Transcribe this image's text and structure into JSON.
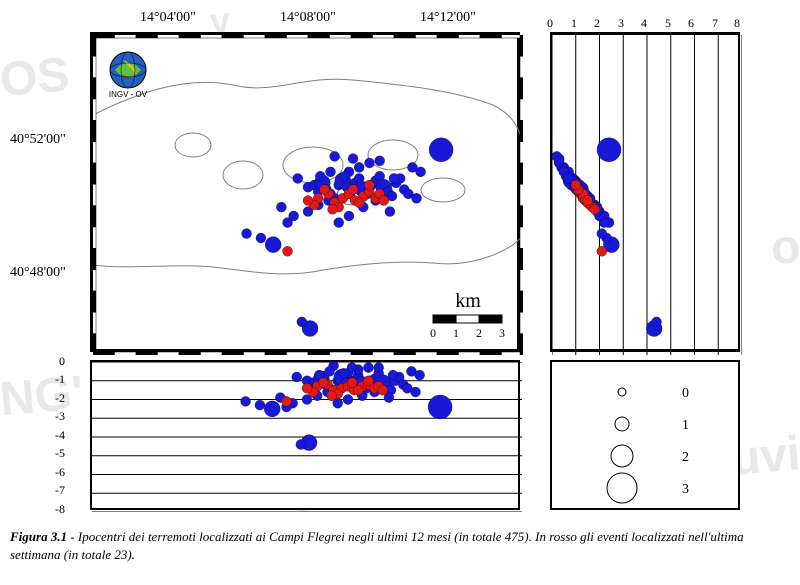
{
  "caption": {
    "label": "Figura 3.1",
    "text": " - Ipocentri dei terremoti localizzati ai Campi Flegrei negli ultimi 12 mesi (in totale 475). In rosso gli eventi localizzati nell'ultima settimana (in totale 23)."
  },
  "map": {
    "lon_ticks": [
      "14°04'00\"",
      "14°08'00\"",
      "14°12'00\""
    ],
    "lat_ticks": [
      "40°52'00\"",
      "40°48'00\""
    ],
    "xlim": [
      14.02,
      14.23
    ],
    "ylim": [
      40.755,
      40.9
    ],
    "scale_label": "km",
    "scale_values": [
      "0",
      "1",
      "2",
      "3"
    ],
    "logo_label": "INGV - OV"
  },
  "depth_axis": {
    "x_ticks": [
      0,
      1,
      2,
      3,
      4,
      5,
      6,
      7,
      8
    ],
    "y_ticks": [
      0,
      -1,
      -2,
      -3,
      -4,
      -5,
      -6,
      -7,
      -8
    ]
  },
  "legend": {
    "items": [
      {
        "size": 4,
        "label": "0"
      },
      {
        "size": 7,
        "label": "1"
      },
      {
        "size": 11,
        "label": "2"
      },
      {
        "size": 15,
        "label": "3"
      }
    ]
  },
  "colors": {
    "blue": "#1818d8",
    "red": "#e01818",
    "surface_outline": "#808080",
    "grid": "#000000",
    "bg": "#ffffff"
  },
  "events": {
    "blue_points": [
      {
        "lon": 14.125,
        "lat": 40.831,
        "d": 1.0,
        "m": 1
      },
      {
        "lon": 14.128,
        "lat": 40.832,
        "d": 1.1,
        "m": 1
      },
      {
        "lon": 14.13,
        "lat": 40.829,
        "d": 1.3,
        "m": 1
      },
      {
        "lon": 14.132,
        "lat": 40.833,
        "d": 0.9,
        "m": 2
      },
      {
        "lon": 14.134,
        "lat": 40.83,
        "d": 1.2,
        "m": 1
      },
      {
        "lon": 14.136,
        "lat": 40.828,
        "d": 1.4,
        "m": 1
      },
      {
        "lon": 14.138,
        "lat": 40.826,
        "d": 1.5,
        "m": 1
      },
      {
        "lon": 14.14,
        "lat": 40.832,
        "d": 1.0,
        "m": 1
      },
      {
        "lon": 14.142,
        "lat": 40.834,
        "d": 0.8,
        "m": 2
      },
      {
        "lon": 14.144,
        "lat": 40.831,
        "d": 1.1,
        "m": 1
      },
      {
        "lon": 14.146,
        "lat": 40.829,
        "d": 1.3,
        "m": 1
      },
      {
        "lon": 14.148,
        "lat": 40.833,
        "d": 1.0,
        "m": 1
      },
      {
        "lon": 14.15,
        "lat": 40.835,
        "d": 0.7,
        "m": 1
      },
      {
        "lon": 14.152,
        "lat": 40.83,
        "d": 1.2,
        "m": 2
      },
      {
        "lon": 14.154,
        "lat": 40.828,
        "d": 1.4,
        "m": 1
      },
      {
        "lon": 14.156,
        "lat": 40.832,
        "d": 1.0,
        "m": 1
      },
      {
        "lon": 14.158,
        "lat": 40.834,
        "d": 0.9,
        "m": 1
      },
      {
        "lon": 14.16,
        "lat": 40.836,
        "d": 0.6,
        "m": 1
      },
      {
        "lon": 14.162,
        "lat": 40.831,
        "d": 1.1,
        "m": 2
      },
      {
        "lon": 14.164,
        "lat": 40.829,
        "d": 1.3,
        "m": 1
      },
      {
        "lon": 14.166,
        "lat": 40.827,
        "d": 1.5,
        "m": 1
      },
      {
        "lon": 14.168,
        "lat": 40.833,
        "d": 1.0,
        "m": 1
      },
      {
        "lon": 14.17,
        "lat": 40.835,
        "d": 0.8,
        "m": 1
      },
      {
        "lon": 14.172,
        "lat": 40.83,
        "d": 1.2,
        "m": 1
      },
      {
        "lon": 14.174,
        "lat": 40.828,
        "d": 1.4,
        "m": 1
      },
      {
        "lon": 14.176,
        "lat": 40.84,
        "d": 0.5,
        "m": 1
      },
      {
        "lon": 14.145,
        "lat": 40.838,
        "d": 0.6,
        "m": 1
      },
      {
        "lon": 14.15,
        "lat": 40.84,
        "d": 0.4,
        "m": 1
      },
      {
        "lon": 14.155,
        "lat": 40.842,
        "d": 0.3,
        "m": 1
      },
      {
        "lon": 14.135,
        "lat": 40.825,
        "d": 1.6,
        "m": 1
      },
      {
        "lon": 14.13,
        "lat": 40.823,
        "d": 1.8,
        "m": 1
      },
      {
        "lon": 14.125,
        "lat": 40.82,
        "d": 2.0,
        "m": 1
      },
      {
        "lon": 14.118,
        "lat": 40.818,
        "d": 2.2,
        "m": 1
      },
      {
        "lon": 14.115,
        "lat": 40.815,
        "d": 2.4,
        "m": 1
      },
      {
        "lon": 14.112,
        "lat": 40.822,
        "d": 1.9,
        "m": 1
      },
      {
        "lon": 14.108,
        "lat": 40.805,
        "d": 2.5,
        "m": 2
      },
      {
        "lon": 14.102,
        "lat": 40.808,
        "d": 2.3,
        "m": 1
      },
      {
        "lon": 14.095,
        "lat": 40.81,
        "d": 2.1,
        "m": 1
      },
      {
        "lon": 14.19,
        "lat": 40.848,
        "d": 2.4,
        "m": 3
      },
      {
        "lon": 14.178,
        "lat": 40.826,
        "d": 1.6,
        "m": 1
      },
      {
        "lon": 14.18,
        "lat": 40.838,
        "d": 0.7,
        "m": 1
      },
      {
        "lon": 14.14,
        "lat": 40.815,
        "d": 2.2,
        "m": 1
      },
      {
        "lon": 14.145,
        "lat": 40.818,
        "d": 2.0,
        "m": 1
      },
      {
        "lon": 14.12,
        "lat": 40.835,
        "d": 0.8,
        "m": 1
      },
      {
        "lon": 14.165,
        "lat": 40.82,
        "d": 1.9,
        "m": 1
      },
      {
        "lon": 14.126,
        "lat": 40.767,
        "d": 4.3,
        "m": 2
      },
      {
        "lon": 14.122,
        "lat": 40.77,
        "d": 4.4,
        "m": 1
      },
      {
        "lon": 14.158,
        "lat": 40.825,
        "d": 1.6,
        "m": 1
      },
      {
        "lon": 14.152,
        "lat": 40.822,
        "d": 1.8,
        "m": 1
      },
      {
        "lon": 14.147,
        "lat": 40.844,
        "d": 0.3,
        "m": 1
      },
      {
        "lon": 14.138,
        "lat": 40.845,
        "d": 0.2,
        "m": 1
      },
      {
        "lon": 14.16,
        "lat": 40.843,
        "d": 0.3,
        "m": 1
      },
      {
        "lon": 14.143,
        "lat": 40.836,
        "d": 0.6,
        "m": 1
      },
      {
        "lon": 14.136,
        "lat": 40.838,
        "d": 0.5,
        "m": 1
      },
      {
        "lon": 14.131,
        "lat": 40.836,
        "d": 0.7,
        "m": 1
      },
      {
        "lon": 14.167,
        "lat": 40.835,
        "d": 0.7,
        "m": 1
      }
    ],
    "red_points": [
      {
        "lon": 14.13,
        "lat": 40.826,
        "d": 1.3,
        "m": 1
      },
      {
        "lon": 14.135,
        "lat": 40.828,
        "d": 1.2,
        "m": 1
      },
      {
        "lon": 14.138,
        "lat": 40.824,
        "d": 1.5,
        "m": 1
      },
      {
        "lon": 14.142,
        "lat": 40.826,
        "d": 1.4,
        "m": 1
      },
      {
        "lon": 14.145,
        "lat": 40.828,
        "d": 1.3,
        "m": 1
      },
      {
        "lon": 14.148,
        "lat": 40.825,
        "d": 1.5,
        "m": 1
      },
      {
        "lon": 14.152,
        "lat": 40.827,
        "d": 1.3,
        "m": 1
      },
      {
        "lon": 14.155,
        "lat": 40.829,
        "d": 1.2,
        "m": 1
      },
      {
        "lon": 14.158,
        "lat": 40.826,
        "d": 1.4,
        "m": 1
      },
      {
        "lon": 14.16,
        "lat": 40.828,
        "d": 1.3,
        "m": 1
      },
      {
        "lon": 14.128,
        "lat": 40.823,
        "d": 1.6,
        "m": 1
      },
      {
        "lon": 14.125,
        "lat": 40.825,
        "d": 1.4,
        "m": 1
      },
      {
        "lon": 14.14,
        "lat": 40.822,
        "d": 1.7,
        "m": 1
      },
      {
        "lon": 14.15,
        "lat": 40.824,
        "d": 1.5,
        "m": 1
      },
      {
        "lon": 14.162,
        "lat": 40.825,
        "d": 1.5,
        "m": 1
      },
      {
        "lon": 14.133,
        "lat": 40.83,
        "d": 1.1,
        "m": 1
      },
      {
        "lon": 14.115,
        "lat": 40.802,
        "d": 2.1,
        "m": 1
      },
      {
        "lon": 14.147,
        "lat": 40.83,
        "d": 1.1,
        "m": 1
      },
      {
        "lon": 14.155,
        "lat": 40.832,
        "d": 1.0,
        "m": 1
      },
      {
        "lon": 14.137,
        "lat": 40.821,
        "d": 1.8,
        "m": 1
      }
    ]
  },
  "strokes": {
    "point_edge_width": 0.3,
    "gridline_width": 1
  },
  "sizes": {
    "axis_font_pt": 14,
    "caption_font_pt": 13,
    "tick_font_pt": 12
  }
}
